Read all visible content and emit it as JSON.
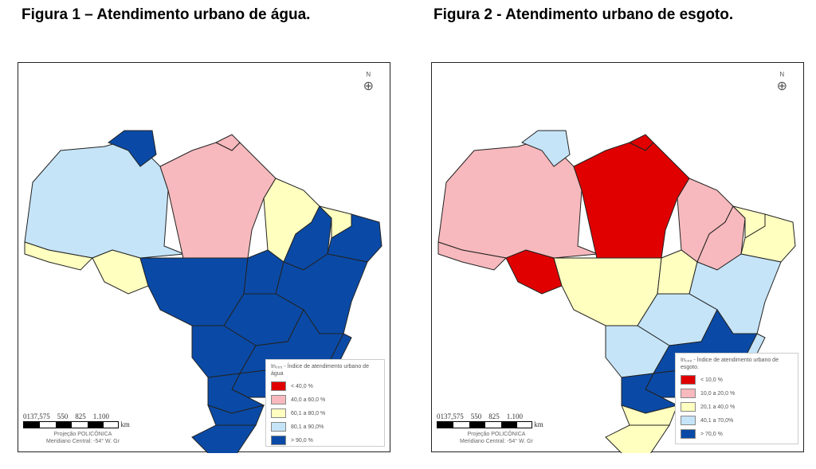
{
  "figures": [
    {
      "title": "Figura 1 – Atendimento urbano de água.",
      "legend_title": "In₀₅₅ - Índice de atendimento urbano de água",
      "legend": [
        {
          "label": "< 40,0 %",
          "color": "#e00000"
        },
        {
          "label": "40,0 a 60,0 %",
          "color": "#f7b9bd"
        },
        {
          "label": "60,1 a 80,0 %",
          "color": "#ffffc0"
        },
        {
          "label": "80,1 a 90,0%",
          "color": "#c5e4f8"
        },
        {
          "label": "> 90,0 %",
          "color": "#0a4aa6"
        }
      ],
      "states": {
        "AM": 3,
        "RR": 4,
        "PA": 1,
        "AP": 1,
        "MA": 2,
        "PI": 4,
        "CE": 2,
        "NE": 4,
        "AC": 2,
        "RO": 2,
        "MT": 4,
        "TO": 4,
        "BA": 4,
        "GO": 4,
        "MS": 4,
        "MG": 4,
        "ES": 4,
        "RJ": 4,
        "SP": 4,
        "PR": 4,
        "SC": 4,
        "RS": 4
      }
    },
    {
      "title": "Figura 2 - Atendimento urbano de esgoto.",
      "legend_title": "In₀₅₆ - Índice de atendimento urbano de esgoto.",
      "legend": [
        {
          "label": "< 10,0 %",
          "color": "#e00000"
        },
        {
          "label": "10,0 a 20,0 %",
          "color": "#f7b9bd"
        },
        {
          "label": "20,1 a 40,0 %",
          "color": "#ffffc0"
        },
        {
          "label": "40,1 a 70,0%",
          "color": "#c5e4f8"
        },
        {
          "label": "> 70,0 %",
          "color": "#0a4aa6"
        }
      ],
      "states": {
        "AM": 1,
        "RR": 3,
        "PA": 0,
        "AP": 0,
        "MA": 1,
        "PI": 1,
        "CE": 2,
        "NE": 2,
        "AC": 1,
        "RO": 0,
        "MT": 2,
        "TO": 2,
        "BA": 3,
        "GO": 3,
        "MS": 3,
        "MG": 4,
        "ES": 3,
        "RJ": 4,
        "SP": 4,
        "PR": 4,
        "SC": 2,
        "RS": 2
      }
    }
  ],
  "scale": {
    "ticks": "0137,575    550    825    1.100",
    "unit": "km"
  },
  "projection": [
    "Projeção POLICÔNICA",
    "Meridiano Central: -54° W. Gr"
  ],
  "north": "N"
}
